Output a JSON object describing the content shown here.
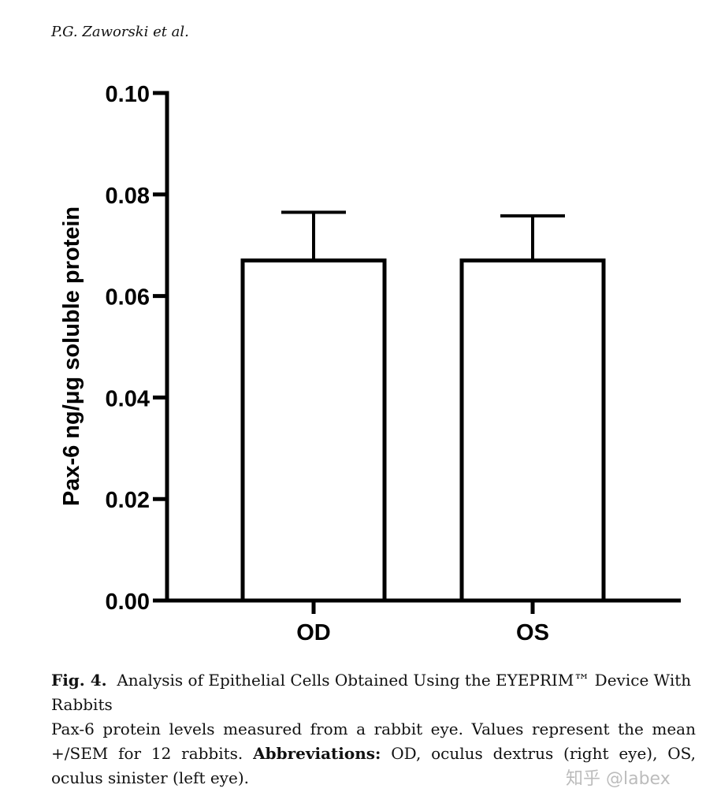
{
  "header": {
    "author": "P.G. Zaworski et al."
  },
  "chart_data": {
    "type": "bar",
    "categories": [
      "OD",
      "OS"
    ],
    "values": [
      0.067,
      0.067
    ],
    "error_upper": [
      0.0765,
      0.0758
    ],
    "ylabel": "Pax-6 ng/μg soluble protein",
    "xlabel": "",
    "ylim": [
      0,
      0.1
    ],
    "yticks": [
      "0.00",
      "0.02",
      "0.04",
      "0.06",
      "0.08",
      "0.10"
    ],
    "grid": false,
    "bar_fill": "#ffffff",
    "bar_stroke": "#000000"
  },
  "caption": {
    "fig_label": "Fig. 4.",
    "title_line1": "Analysis of Epithelial Cells Obtained Using the EYEPRIM™ Device With",
    "title_line2": "Rabbits",
    "body_line1": "Pax-6 protein levels measured from a rabbit eye. Values represent the mean",
    "body_line2a": "+/SEM for 12 rabbits.",
    "abbrev_label": "Abbreviations:",
    "body_line2b": "OD, oculus dextrus (right eye), OS,",
    "body_line3": "oculus sinister (left eye)."
  },
  "watermark": {
    "text": "知乎 @labex"
  }
}
